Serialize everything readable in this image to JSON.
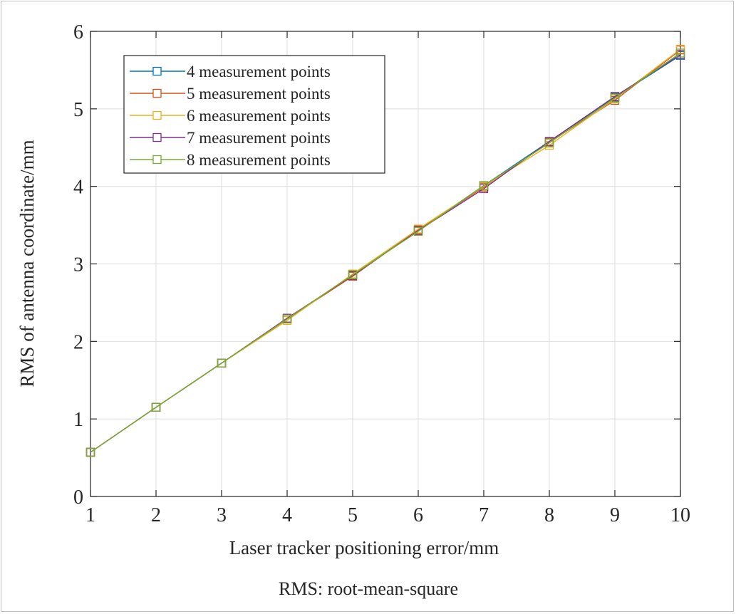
{
  "chart_data": {
    "type": "line",
    "title": "",
    "xlabel": "Laser tracker positioning error/mm",
    "ylabel": "RMS of antenna coordinate/mm",
    "note": "RMS: root-mean-square",
    "xlim": [
      1,
      10
    ],
    "ylim": [
      0,
      6
    ],
    "xticks": [
      1,
      2,
      3,
      4,
      5,
      6,
      7,
      8,
      9,
      10
    ],
    "yticks": [
      0,
      1,
      2,
      3,
      4,
      5,
      6
    ],
    "grid": true,
    "legend_position": "top-left",
    "marker": "square",
    "x": [
      1,
      2,
      3,
      4,
      5,
      6,
      7,
      8,
      9,
      10
    ],
    "series": [
      {
        "name": "4 measurement points",
        "color": "#0072BD",
        "values": [
          0.57,
          1.15,
          1.72,
          2.29,
          2.86,
          3.43,
          4.01,
          4.58,
          5.15,
          5.69
        ]
      },
      {
        "name": "5 measurement points",
        "color": "#D95319",
        "values": [
          0.57,
          1.15,
          1.72,
          2.29,
          2.84,
          3.44,
          3.99,
          4.57,
          5.11,
          5.76
        ]
      },
      {
        "name": "6 measurement points",
        "color": "#EDB120",
        "values": [
          0.57,
          1.15,
          1.72,
          2.27,
          2.87,
          3.45,
          4.0,
          4.53,
          5.13,
          5.77
        ]
      },
      {
        "name": "7 measurement points",
        "color": "#7E2F8E",
        "values": [
          0.57,
          1.15,
          1.72,
          2.3,
          2.85,
          3.43,
          3.97,
          4.58,
          5.16,
          5.7
        ]
      },
      {
        "name": "8 measurement points",
        "color": "#77AC30",
        "values": [
          0.57,
          1.15,
          1.72,
          2.29,
          2.86,
          3.42,
          4.01,
          4.56,
          5.14,
          5.72
        ]
      }
    ]
  }
}
